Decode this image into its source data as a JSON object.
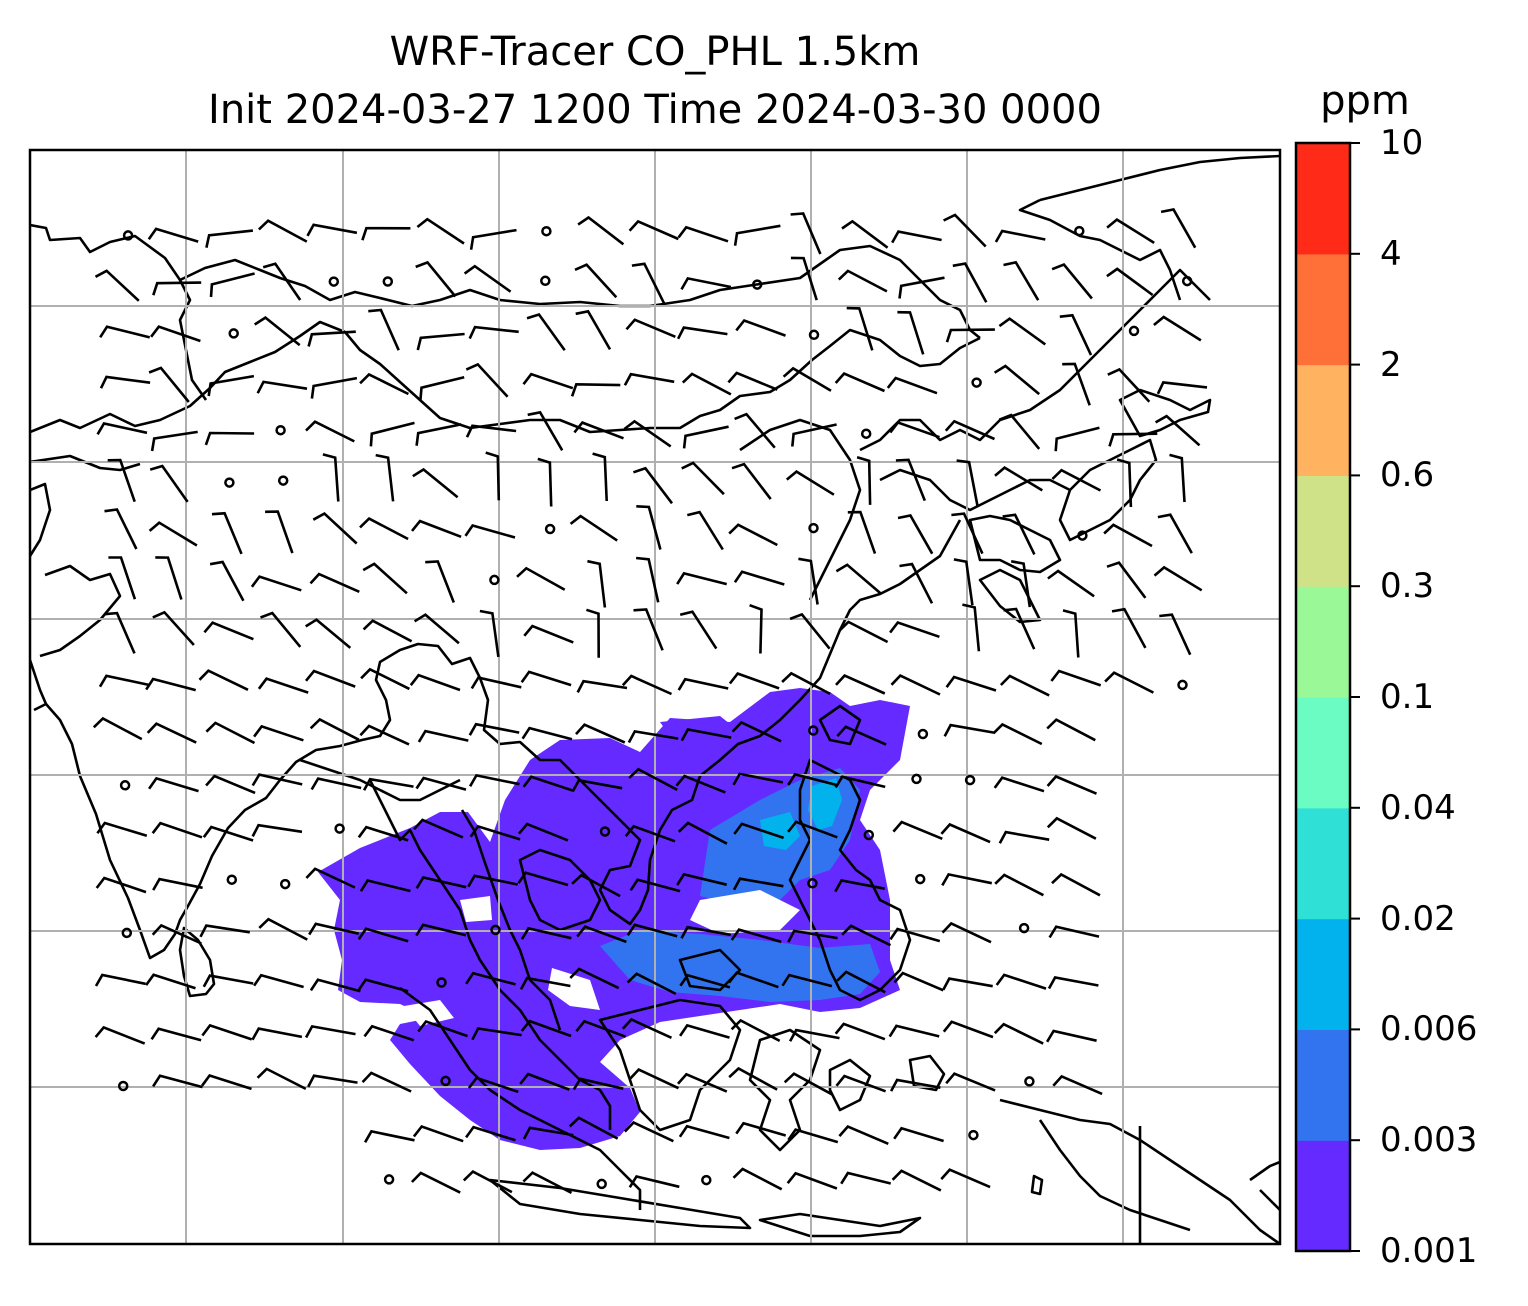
{
  "title": {
    "line1": "WRF-Tracer CO_PHL 1.5km",
    "line2": "Init 2024-03-27 1200 Time 2024-03-30 0000"
  },
  "colorbar": {
    "label": "ppm",
    "ticks": [
      "0.001",
      "0.003",
      "0.006",
      "0.02",
      "0.04",
      "0.1",
      "0.3",
      "0.6",
      "2",
      "4",
      "10"
    ],
    "colors": [
      "#652aff",
      "#3274f0",
      "#01b2ed",
      "#2ee0d5",
      "#6afcc2",
      "#9af896",
      "#cfe288",
      "#ffb360",
      "#fe7038",
      "#ff2a17"
    ]
  },
  "map": {
    "region": "South and East Asia, Maritime Continent",
    "tracer": "CO_PHL",
    "gridlines": true,
    "wind_barbs": true
  }
}
